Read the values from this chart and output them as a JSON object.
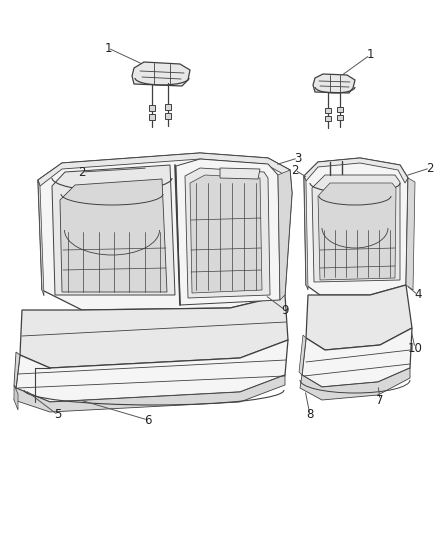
{
  "bg_color": "#ffffff",
  "line_color": "#404040",
  "label_color": "#222222",
  "fill_light": "#f5f5f5",
  "fill_mid": "#e8e8e8",
  "fill_dark": "#d8d8d8",
  "fill_darker": "#cccccc",
  "font_size": 8.5,
  "line_width": 0.9,
  "figsize": [
    4.38,
    5.33
  ],
  "dpi": 100
}
